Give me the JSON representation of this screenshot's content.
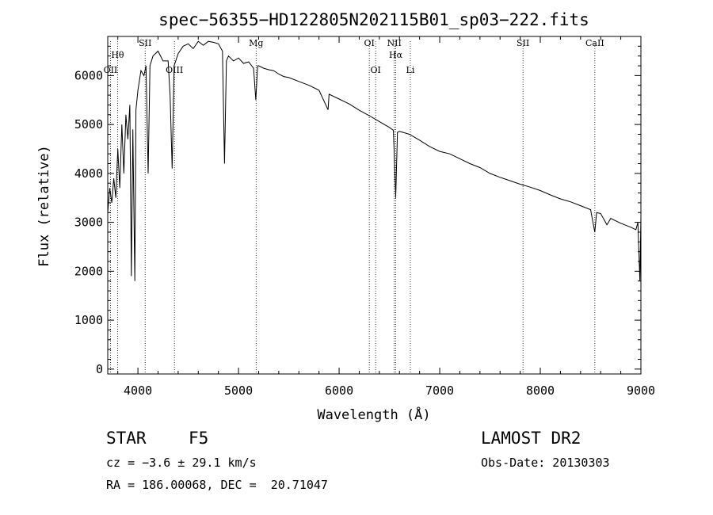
{
  "chart_data": {
    "type": "line",
    "title": "spec−56355−HD122805N202115B01_sp03−222.fits",
    "xlabel": "Wavelength (Å)",
    "ylabel": "Flux (relative)",
    "xlim": [
      3700,
      9000
    ],
    "ylim": [
      -100,
      6800
    ],
    "xticks": [
      4000,
      5000,
      6000,
      7000,
      8000,
      9000
    ],
    "yticks": [
      0,
      1000,
      2000,
      3000,
      4000,
      5000,
      6000
    ],
    "grid": false,
    "series": [
      {
        "x": [
          3700,
          3720,
          3740,
          3760,
          3780,
          3800,
          3820,
          3840,
          3860,
          3880,
          3900,
          3920,
          3935,
          3950,
          3969,
          3980,
          4000,
          4030,
          4060,
          4080,
          4102,
          4120,
          4150,
          4200,
          4250,
          4300,
          4320,
          4340,
          4360,
          4400,
          4450,
          4500,
          4550,
          4600,
          4650,
          4700,
          4750,
          4800,
          4840,
          4861,
          4880,
          4900,
          4950,
          5000,
          5050,
          5100,
          5150,
          5172,
          5190,
          5200,
          5250,
          5300,
          5350,
          5400,
          5450,
          5500,
          5600,
          5700,
          5800,
          5890,
          5900,
          6000,
          6100,
          6200,
          6300,
          6400,
          6500,
          6540,
          6563,
          6580,
          6600,
          6700,
          6800,
          6900,
          7000,
          7100,
          7200,
          7300,
          7400,
          7500,
          7600,
          7700,
          7800,
          7900,
          8000,
          8100,
          8200,
          8300,
          8400,
          8500,
          8542,
          8560,
          8600,
          8662,
          8700,
          8800,
          8900,
          8950,
          8970,
          8990,
          9000
        ],
        "y": [
          3200,
          3700,
          3400,
          3900,
          3500,
          4500,
          3700,
          5000,
          4000,
          5200,
          4700,
          5400,
          1900,
          4900,
          1800,
          5300,
          5700,
          6100,
          6000,
          6200,
          4000,
          6200,
          6400,
          6500,
          6300,
          6300,
          5600,
          4100,
          6200,
          6450,
          6600,
          6650,
          6550,
          6700,
          6620,
          6700,
          6680,
          6650,
          6500,
          4200,
          6300,
          6400,
          6300,
          6360,
          6250,
          6280,
          6150,
          5500,
          6200,
          6200,
          6150,
          6120,
          6100,
          6030,
          5980,
          5960,
          5880,
          5800,
          5700,
          5300,
          5620,
          5520,
          5420,
          5290,
          5180,
          5060,
          4940,
          4880,
          3500,
          4840,
          4860,
          4800,
          4680,
          4550,
          4450,
          4400,
          4300,
          4200,
          4120,
          4000,
          3920,
          3850,
          3780,
          3720,
          3650,
          3560,
          3480,
          3420,
          3340,
          3260,
          2800,
          3200,
          3180,
          2950,
          3080,
          2980,
          2900,
          2850,
          3000,
          1800,
          3100
        ]
      }
    ],
    "line_markers": [
      {
        "label": "Hθ",
        "wavelength": 3798
      },
      {
        "label": "OII",
        "wavelength": 3727
      },
      {
        "label": "SII",
        "wavelength": 4072
      },
      {
        "label": "OIII",
        "wavelength": 4363
      },
      {
        "label": "Mg",
        "wavelength": 5175
      },
      {
        "label": "OI",
        "wavelength": 6300
      },
      {
        "label": "OI",
        "wavelength": 6363
      },
      {
        "label": "NII",
        "wavelength": 6548
      },
      {
        "label": "Hα",
        "wavelength": 6563
      },
      {
        "label": "Li",
        "wavelength": 6708
      },
      {
        "label": "SII",
        "wavelength": 7828
      },
      {
        "label": "CaII",
        "wavelength": 8542
      }
    ]
  },
  "info": {
    "object_type": "STAR",
    "subclass": "F5",
    "survey": "LAMOST DR2",
    "redshift_text": "cz = −3.6 ± 29.1 km/s",
    "obs_date_text": "Obs-Date: 20130303",
    "coords_text": "RA = 186.00068, DEC =  20.71047"
  }
}
